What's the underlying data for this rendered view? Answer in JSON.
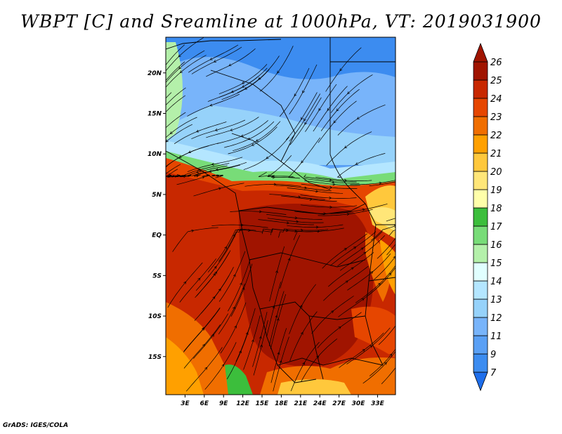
{
  "title": "WBPT [C] and Sreamline at 1000hPa, VT: 2019031900",
  "credit": "GrADS: IGES/COLA",
  "map": {
    "lon_range": [
      0,
      35.8
    ],
    "lat_range": [
      -19.7,
      24.4
    ],
    "lon_ticks": [
      {
        "value": 3,
        "label": "3E"
      },
      {
        "value": 6,
        "label": "6E"
      },
      {
        "value": 9,
        "label": "9E"
      },
      {
        "value": 12,
        "label": "12E"
      },
      {
        "value": 15,
        "label": "15E"
      },
      {
        "value": 18,
        "label": "18E"
      },
      {
        "value": 21,
        "label": "21E"
      },
      {
        "value": 24,
        "label": "24E"
      },
      {
        "value": 27,
        "label": "27E"
      },
      {
        "value": 30,
        "label": "30E"
      },
      {
        "value": 33,
        "label": "33E"
      }
    ],
    "lat_ticks": [
      {
        "value": 20,
        "label": "20N"
      },
      {
        "value": 15,
        "label": "15N"
      },
      {
        "value": 10,
        "label": "10N"
      },
      {
        "value": 5,
        "label": "5N"
      },
      {
        "value": 0,
        "label": "EQ"
      },
      {
        "value": -5,
        "label": "5S"
      },
      {
        "value": -10,
        "label": "10S"
      },
      {
        "value": -15,
        "label": "15S"
      }
    ]
  },
  "colorbar": {
    "levels": [
      "7",
      "9",
      "11",
      "12",
      "13",
      "14",
      "15",
      "16",
      "17",
      "18",
      "19",
      "20",
      "21",
      "22",
      "23",
      "24",
      "25",
      "26"
    ],
    "colors": [
      "#1e6eeb",
      "#3c8cf0",
      "#5aa0f5",
      "#78b4fa",
      "#96d2fa",
      "#b4e6ff",
      "#e1ffff",
      "#b4f0aa",
      "#78dc78",
      "#3cbe3c",
      "#ffffaa",
      "#ffe678",
      "#ffc83c",
      "#ffa000",
      "#f06e00",
      "#e64600",
      "#c82800",
      "#a01400",
      "#a01400"
    ]
  }
}
